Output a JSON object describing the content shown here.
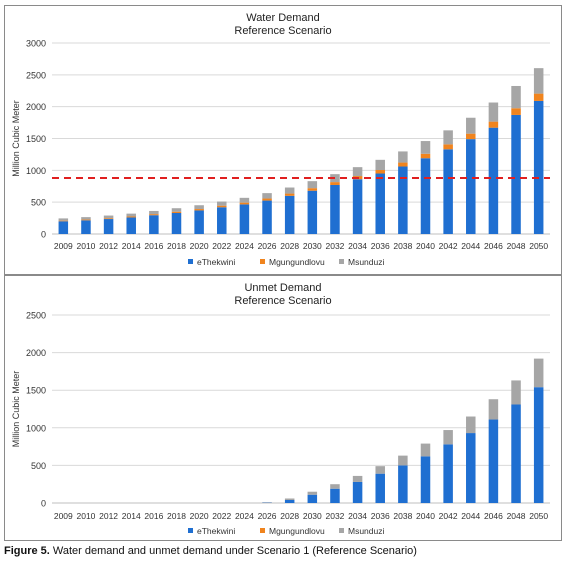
{
  "charts": [
    {
      "title": "Water Demand",
      "subtitle": "Reference Scenario",
      "ylabel": "Million Cubic Meter",
      "ylim": [
        0,
        3000
      ],
      "yticks": [
        0,
        500,
        1000,
        1500,
        2000,
        2500,
        3000
      ],
      "threshold_line": 880,
      "threshold_color": "#e02020"
    },
    {
      "title": "Unmet Demand",
      "subtitle": "Reference Scenario",
      "ylabel": "Million Cubic Meter",
      "ylim": [
        0,
        2500
      ],
      "yticks": [
        0,
        500,
        1000,
        1500,
        2000,
        2500
      ]
    }
  ],
  "colors": {
    "eThekwini": "#1f6fd1",
    "Mgungundlovu": "#f0841e",
    "Msunduzi": "#a6a6a6"
  },
  "chart_data": [
    {
      "type": "bar",
      "stacked": true,
      "title": "Water Demand Reference Scenario",
      "ylabel": "Million Cubic Meter",
      "ylim": [
        0,
        3000
      ],
      "legend": "bottom",
      "categories": [
        "2009",
        "2010",
        "2012",
        "2014",
        "2016",
        "2018",
        "2020",
        "2022",
        "2024",
        "2026",
        "2028",
        "2030",
        "2032",
        "2034",
        "2036",
        "2038",
        "2040",
        "2042",
        "2044",
        "2046",
        "2048",
        "2050"
      ],
      "series": [
        {
          "name": "eThekwini",
          "values": [
            200,
            215,
            235,
            260,
            295,
            330,
            370,
            420,
            465,
            525,
            600,
            680,
            770,
            860,
            950,
            1060,
            1190,
            1330,
            1490,
            1670,
            1870,
            2090
          ]
        },
        {
          "name": "Mgungundlovu",
          "values": [
            10,
            12,
            13,
            15,
            17,
            20,
            22,
            25,
            28,
            32,
            35,
            40,
            45,
            50,
            55,
            62,
            70,
            78,
            86,
            95,
            105,
            115
          ]
        },
        {
          "name": "Msunduzi",
          "values": [
            35,
            38,
            42,
            45,
            50,
            55,
            60,
            65,
            75,
            85,
            95,
            110,
            125,
            140,
            160,
            175,
            200,
            220,
            250,
            300,
            350,
            400
          ]
        }
      ]
    },
    {
      "type": "bar",
      "stacked": true,
      "title": "Unmet Demand Reference Scenario",
      "ylabel": "Million Cubic Meter",
      "ylim": [
        0,
        2500
      ],
      "legend": "bottom",
      "categories": [
        "2009",
        "2010",
        "2012",
        "2014",
        "2016",
        "2018",
        "2020",
        "2022",
        "2024",
        "2026",
        "2028",
        "2030",
        "2032",
        "2034",
        "2036",
        "2038",
        "2040",
        "2042",
        "2044",
        "2046",
        "2048",
        "2050"
      ],
      "series": [
        {
          "name": "eThekwini",
          "values": [
            0,
            0,
            0,
            0,
            0,
            0,
            0,
            0,
            0,
            5,
            40,
            110,
            190,
            280,
            390,
            500,
            620,
            780,
            930,
            1110,
            1310,
            1540
          ]
        },
        {
          "name": "Mgungundlovu",
          "values": [
            0,
            0,
            0,
            0,
            0,
            0,
            0,
            0,
            0,
            0,
            0,
            0,
            0,
            0,
            0,
            0,
            0,
            0,
            0,
            0,
            0,
            0
          ]
        },
        {
          "name": "Msunduzi",
          "values": [
            0,
            0,
            0,
            0,
            0,
            0,
            0,
            0,
            0,
            5,
            20,
            40,
            60,
            80,
            100,
            130,
            170,
            190,
            220,
            270,
            320,
            380
          ]
        }
      ]
    }
  ],
  "caption": {
    "label": "Figure 5.",
    "text": " Water demand and unmet demand under Scenario 1 (Reference Scenario)"
  }
}
